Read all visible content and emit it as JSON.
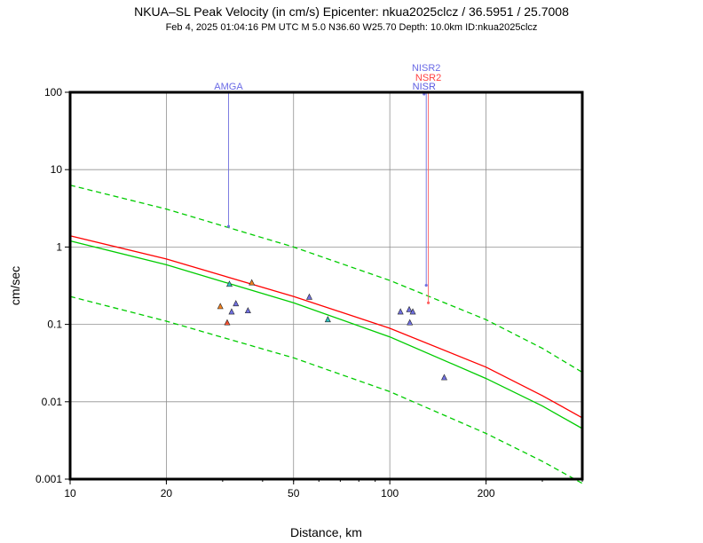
{
  "title": "NKUA–SL Peak Velocity (in cm/s) Epicenter: nkua2025clcz / 36.5951 / 25.7008",
  "subtitle": "Feb  4, 2025 01:04:16 PM UTC   M 5.0   N36.60 W25.70   Depth: 10.0km   ID:nkua2025clcz",
  "chart_data": {
    "type": "scatter",
    "title": "NKUA–SL Peak Velocity (in cm/s) Epicenter: nkua2025clcz / 36.5951 / 25.7008",
    "xlabel": "Distance, km",
    "ylabel": "cm/sec",
    "xscale": "log",
    "yscale": "log",
    "xlim": [
      10,
      400
    ],
    "ylim": [
      0.001,
      100
    ],
    "grid": true,
    "x_ticks": [
      {
        "v": 10,
        "label": "10"
      },
      {
        "v": 20,
        "label": "20"
      },
      {
        "v": 50,
        "label": "50"
      },
      {
        "v": 100,
        "label": "100"
      },
      {
        "v": 200,
        "label": "200"
      }
    ],
    "y_ticks": [
      {
        "v": 100,
        "label": "100"
      },
      {
        "v": 10,
        "label": "10"
      },
      {
        "v": 1,
        "label": "1"
      },
      {
        "v": 0.1,
        "label": "0.1"
      },
      {
        "v": 0.01,
        "label": "0.01"
      },
      {
        "v": 0.001,
        "label": "0.001"
      }
    ],
    "curves": [
      {
        "name": "upper-bound",
        "style": "dashed",
        "color": "#00cc00",
        "x": [
          10,
          20,
          50,
          100,
          200,
          300,
          400
        ],
        "y": [
          6.3,
          3.1,
          1.0,
          0.37,
          0.115,
          0.049,
          0.024
        ]
      },
      {
        "name": "predicted-red",
        "style": "solid",
        "color": "#ff0000",
        "x": [
          10,
          20,
          50,
          100,
          200,
          300,
          400
        ],
        "y": [
          1.4,
          0.7,
          0.23,
          0.089,
          0.028,
          0.012,
          0.0062
        ]
      },
      {
        "name": "predicted-green",
        "style": "solid",
        "color": "#00cc00",
        "x": [
          10,
          20,
          50,
          100,
          200,
          300,
          400
        ],
        "y": [
          1.2,
          0.59,
          0.19,
          0.069,
          0.02,
          0.0088,
          0.0045
        ]
      },
      {
        "name": "lower-bound",
        "style": "dashed",
        "color": "#00cc00",
        "x": [
          10,
          20,
          50,
          100,
          200,
          300,
          400
        ],
        "y": [
          0.23,
          0.11,
          0.037,
          0.0135,
          0.0039,
          0.0017,
          0.00088
        ]
      }
    ],
    "stations": [
      {
        "x": 29.5,
        "y": 0.17,
        "color": "#f08020"
      },
      {
        "x": 31.0,
        "y": 0.105,
        "color": "#f05030"
      },
      {
        "x": 31.5,
        "y": 0.33,
        "color": "#30c0c0"
      },
      {
        "x": 32.0,
        "y": 0.145,
        "color": "#7070e0"
      },
      {
        "x": 33.0,
        "y": 0.185,
        "color": "#7070e0"
      },
      {
        "x": 36.0,
        "y": 0.15,
        "color": "#7070e0"
      },
      {
        "x": 37.0,
        "y": 0.345,
        "color": "#f08020"
      },
      {
        "x": 56.0,
        "y": 0.225,
        "color": "#7070e0"
      },
      {
        "x": 64.0,
        "y": 0.115,
        "color": "#30c0c0"
      },
      {
        "x": 108.0,
        "y": 0.145,
        "color": "#7070e0"
      },
      {
        "x": 115.0,
        "y": 0.155,
        "color": "#7070e0"
      },
      {
        "x": 118.0,
        "y": 0.145,
        "color": "#7070e0"
      },
      {
        "x": 115.5,
        "y": 0.105,
        "color": "#7070e0"
      },
      {
        "x": 148.0,
        "y": 0.0205,
        "color": "#7070e0"
      }
    ],
    "flagged": [
      {
        "label": "AMGA",
        "x": 31.3,
        "y": 1.85,
        "color": "#7070e0",
        "label_color": "#6a6ae6",
        "row": 0
      },
      {
        "label": "NISR2",
        "x": 130.0,
        "y": 0.32,
        "color": "#7070e0",
        "label_color": "#6a6ae6",
        "row": 2
      },
      {
        "label": "NSR2",
        "x": 132.0,
        "y": 0.19,
        "color": "#ff6060",
        "label_color": "#ff4040",
        "row": 1
      },
      {
        "label": "NISR",
        "x": 128.0,
        "y": 95.0,
        "color": "#7070e0",
        "label_color": "#5a5ae0",
        "row": 0
      }
    ]
  }
}
